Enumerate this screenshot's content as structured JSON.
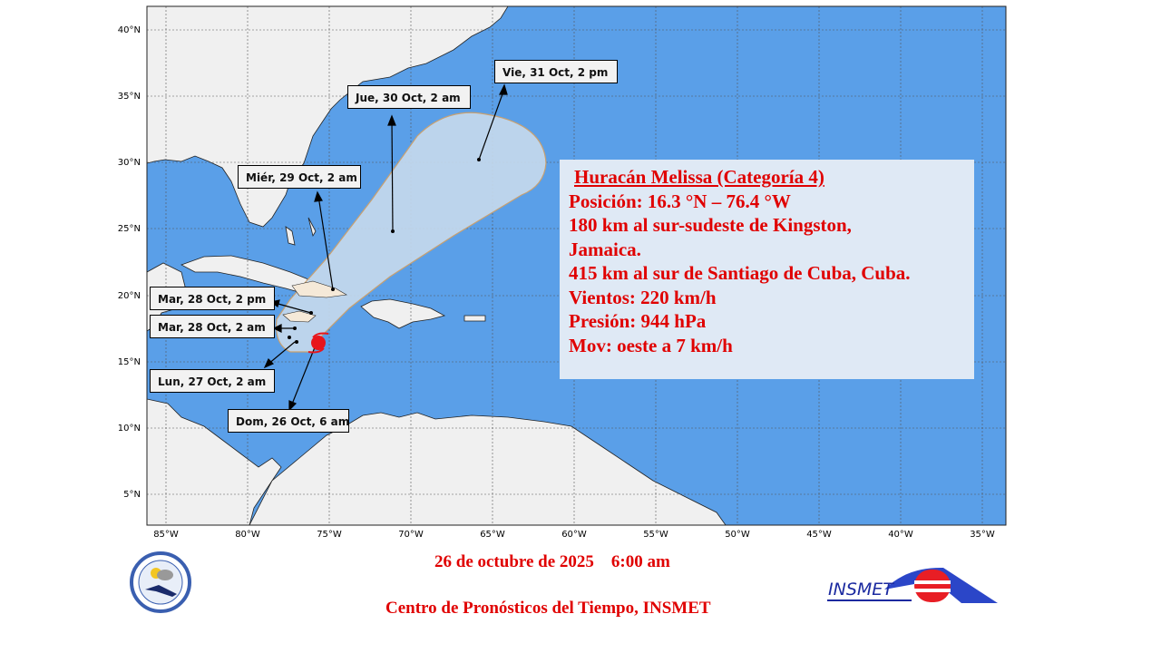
{
  "map": {
    "lat_ticks": [
      "40°N",
      "35°N",
      "30°N",
      "25°N",
      "20°N",
      "15°N",
      "10°N",
      "5°N"
    ],
    "lon_ticks": [
      "85°W",
      "80°W",
      "75°W",
      "70°W",
      "65°W",
      "60°W",
      "55°W",
      "50°W",
      "45°W",
      "40°W",
      "35°W"
    ],
    "colors": {
      "ocean": "#5a9fe8",
      "land": "#f0f0f0",
      "cone": "#c4d8ec",
      "storm": "#e8151b"
    },
    "forecast_labels": [
      "Vie, 31 Oct, 2 pm",
      "Jue, 30 Oct, 2 am",
      "Miér, 29 Oct, 2 am",
      "Mar, 28 Oct, 2 pm",
      "Mar, 28 Oct, 2 am",
      "Lun, 27 Oct, 2 am",
      "Dom, 26 Oct, 6 am"
    ],
    "storm_icon": "hurricane-icon"
  },
  "info": {
    "title": "Huracán Melissa (Categoría 4)",
    "lines": [
      "Posición: 16.3 °N – 76.4 °W",
      "180 km al sur-sudeste de Kingston,",
      "Jamaica.",
      "415 km al sur de Santiago de Cuba, Cuba.",
      "Vientos: 220 km/h",
      "Presión: 944 hPa",
      "Mov: oeste a 7 km/h"
    ]
  },
  "footer": {
    "date": "26 de octubre de 2025    6:00 am",
    "center": "Centro de Pronósticos del Tiempo, INSMET",
    "logo_left_text": "Centro de Pronósticos INSMET",
    "logo_right_text": "INSMET"
  }
}
